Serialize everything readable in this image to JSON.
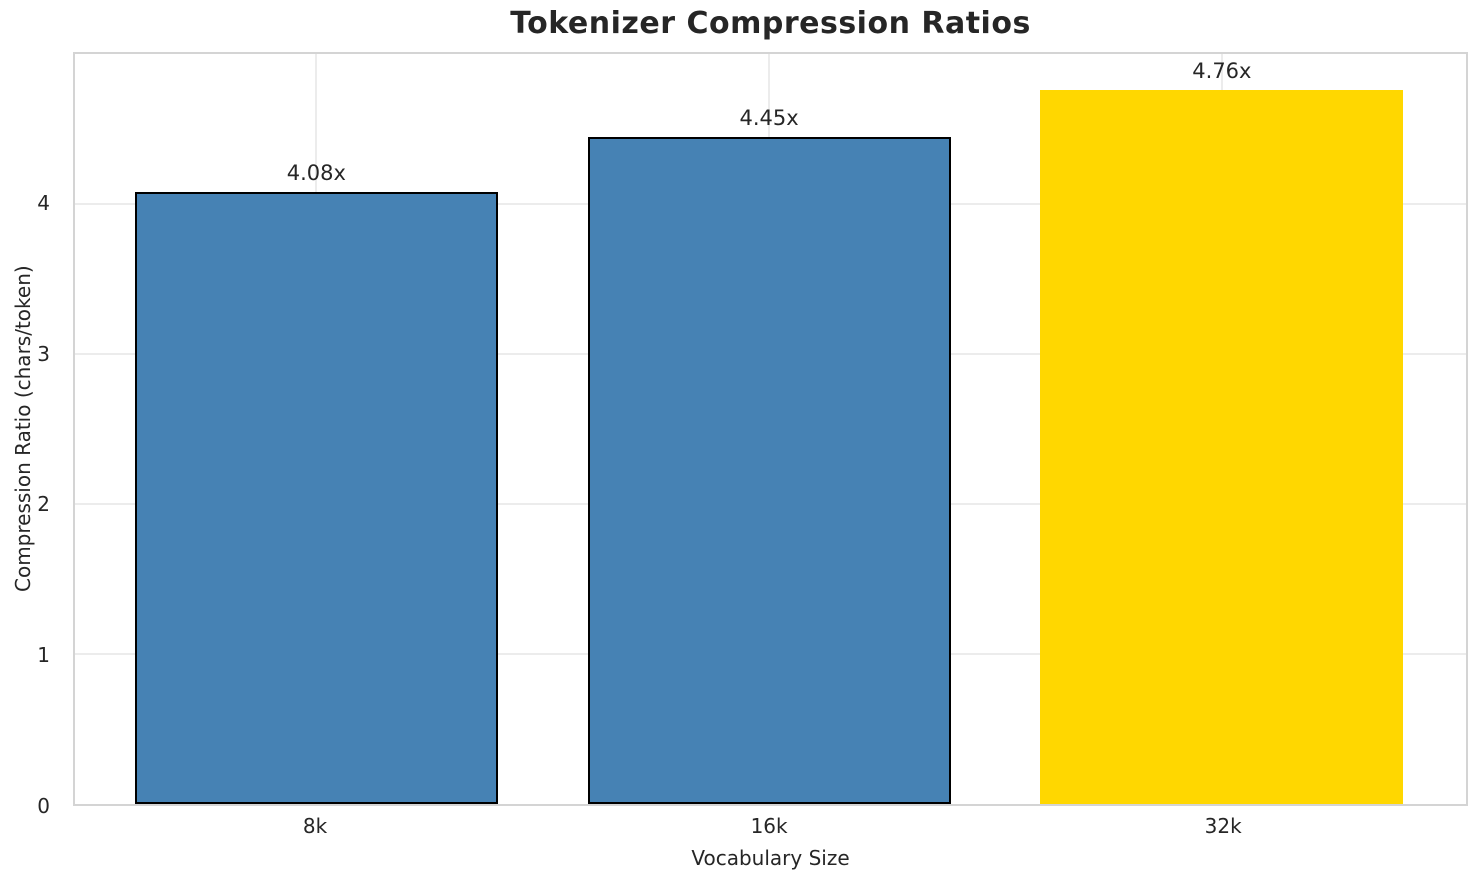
{
  "figure": {
    "background_color": "#FFFFFF"
  },
  "chart_data": {
    "type": "bar",
    "title": "Tokenizer Compression Ratios",
    "xlabel": "Vocabulary Size",
    "ylabel": "Compression Ratio (chars/token)",
    "categories": [
      "8k",
      "16k",
      "32k"
    ],
    "values": [
      4.08,
      4.45,
      4.76
    ],
    "bar_labels": [
      "4.08x",
      "4.45x",
      "4.76x"
    ],
    "bar_colors": [
      "#4682B4",
      "#4682B4",
      "#FFD700"
    ],
    "bar_edge_colors": [
      "#000000",
      "#000000",
      "none"
    ],
    "highlighted_category": "32k",
    "ylim": [
      0,
      5.0
    ],
    "yticks": [
      0,
      1,
      2,
      3,
      4
    ],
    "grid": "both",
    "legend": false,
    "colors": {
      "grid": "#ECECEC",
      "spine": "#D4D4D4",
      "text": "#262626",
      "background": "#FFFFFF"
    }
  },
  "layout_hints": {
    "bar_center_percents": [
      17.35,
      49.9,
      82.45
    ],
    "bar_width_percent": 26.1
  }
}
